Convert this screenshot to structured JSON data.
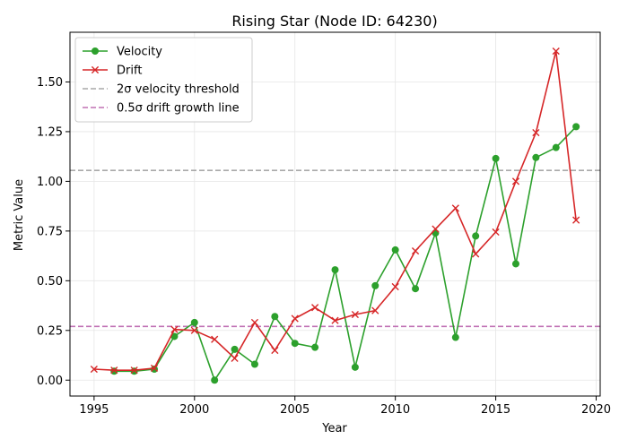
{
  "chart_data": {
    "type": "line",
    "title": "Rising Star (Node ID: 64230)",
    "xlabel": "Year",
    "ylabel": "Metric Value",
    "xlim": [
      1993.8,
      2020.2
    ],
    "ylim": [
      -0.08,
      1.75
    ],
    "xticks": [
      1995,
      2000,
      2005,
      2010,
      2015,
      2020
    ],
    "xtick_labels": [
      "1995",
      "2000",
      "2005",
      "2010",
      "2015",
      "2020"
    ],
    "yticks": [
      0.0,
      0.25,
      0.5,
      0.75,
      1.0,
      1.25,
      1.5
    ],
    "ytick_labels": [
      "0.00",
      "0.25",
      "0.50",
      "0.75",
      "1.00",
      "1.25",
      "1.50"
    ],
    "grid": true,
    "legend_position": "top-left",
    "series": [
      {
        "name": "Velocity",
        "color": "#2ca02c",
        "marker": "circle",
        "x": [
          1996,
          1997,
          1998,
          1999,
          2000,
          2001,
          2002,
          2003,
          2004,
          2005,
          2006,
          2007,
          2008,
          2009,
          2010,
          2011,
          2012,
          2013,
          2014,
          2015,
          2016,
          2017,
          2018,
          2019
        ],
        "y": [
          0.045,
          0.045,
          0.055,
          0.22,
          0.29,
          0.0,
          0.155,
          0.08,
          0.32,
          0.185,
          0.165,
          0.555,
          0.065,
          0.475,
          0.655,
          0.46,
          0.74,
          0.215,
          0.725,
          1.115,
          0.585,
          1.12,
          1.17,
          1.275
        ]
      },
      {
        "name": "Drift",
        "color": "#d62728",
        "marker": "x",
        "x": [
          1995,
          1996,
          1997,
          1998,
          1999,
          2000,
          2001,
          2002,
          2003,
          2004,
          2005,
          2006,
          2007,
          2008,
          2009,
          2010,
          2011,
          2012,
          2013,
          2014,
          2015,
          2016,
          2017,
          2018,
          2019
        ],
        "y": [
          0.055,
          0.05,
          0.05,
          0.06,
          0.255,
          0.25,
          0.205,
          0.11,
          0.29,
          0.15,
          0.31,
          0.365,
          0.3,
          0.33,
          0.35,
          0.47,
          0.65,
          0.76,
          0.865,
          0.635,
          0.745,
          1.0,
          1.245,
          1.655,
          0.805
        ]
      }
    ],
    "hlines": [
      {
        "name": "2σ velocity threshold",
        "y": 1.055,
        "color": "#a9a9a9",
        "style": "dashed"
      },
      {
        "name": "0.5σ drift growth line",
        "y": 0.27,
        "color": "#c071b4",
        "style": "dashed"
      }
    ]
  }
}
